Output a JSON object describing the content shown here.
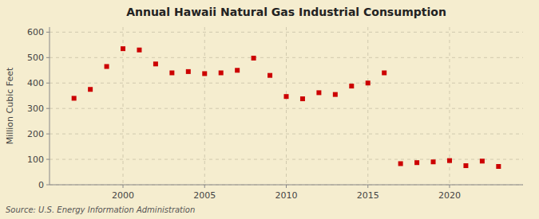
{
  "chart_data": {
    "type": "scatter",
    "title": "Annual Hawaii Natural Gas Industrial Consumption",
    "ylabel": "Million Cubic Feet",
    "annotation": "Source: U.S. Energy Information Administration",
    "x": [
      1997,
      1998,
      1999,
      2000,
      2001,
      2002,
      2003,
      2004,
      2005,
      2006,
      2007,
      2008,
      2009,
      2010,
      2011,
      2012,
      2013,
      2014,
      2015,
      2016,
      2017,
      2018,
      2019,
      2020,
      2021,
      2022,
      2023
    ],
    "values": [
      340,
      375,
      465,
      535,
      530,
      475,
      440,
      445,
      437,
      440,
      450,
      498,
      430,
      347,
      338,
      362,
      355,
      388,
      400,
      440,
      83,
      87,
      90,
      95,
      75,
      93,
      72
    ],
    "color": "#cc0000",
    "marker": "square",
    "xlim": [
      1995.5,
      2024.5
    ],
    "ylim": [
      0,
      620
    ],
    "xticks": [
      2000,
      2005,
      2010,
      2015,
      2020
    ],
    "yticks": [
      0,
      100,
      200,
      300,
      400,
      500,
      600
    ],
    "grid": true
  }
}
